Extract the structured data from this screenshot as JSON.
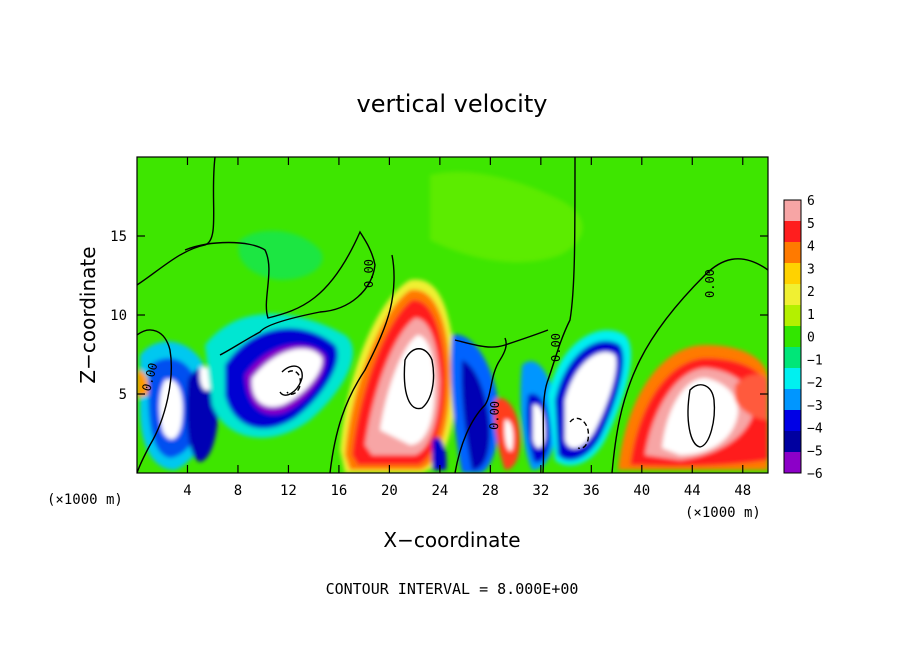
{
  "chart_data": {
    "type": "heatmap",
    "title": "vertical velocity",
    "xlabel": "X−coordinate",
    "ylabel": "Z−coordinate",
    "x_unit_left": "(×1000 m)",
    "x_unit_right": "(×1000 m)",
    "xlim": [
      0,
      50
    ],
    "ylim": [
      0,
      20
    ],
    "xticks": [
      4,
      8,
      12,
      16,
      20,
      24,
      28,
      32,
      36,
      40,
      44,
      48
    ],
    "yticks": [
      5,
      10,
      15
    ],
    "colorbar": {
      "range": [
        -6,
        6
      ],
      "ticks": [
        "6",
        "5",
        "4",
        "3",
        "2",
        "1",
        "0",
        "−1",
        "−2",
        "−3",
        "−4",
        "−5",
        "−6"
      ],
      "colors": [
        "#f7a5a5",
        "#ff1e1e",
        "#ff7a00",
        "#ffd200",
        "#f0f032",
        "#b4f000",
        "#32e600",
        "#00e678",
        "#00f0f0",
        "#0096ff",
        "#0000e6",
        "#0000a0",
        "#8c00c8"
      ]
    },
    "contour_label": "0.00",
    "footer": "CONTOUR INTERVAL = 8.000E+00",
    "features": [
      {
        "x": 2.6,
        "z": 3.6,
        "w": -6
      },
      {
        "x": 5.4,
        "z": 4.8,
        "w": -6
      },
      {
        "x": 11.8,
        "z": 6.6,
        "w": -6
      },
      {
        "x": 21.8,
        "z": 6.8,
        "w": 6
      },
      {
        "x": 19.8,
        "z": 4.2,
        "w": 5
      },
      {
        "x": 29.4,
        "z": 2.6,
        "w": 5
      },
      {
        "x": 32.0,
        "z": 3.0,
        "w": -6
      },
      {
        "x": 35.3,
        "z": 4.0,
        "w": -6
      },
      {
        "x": 44.3,
        "z": 3.8,
        "w": 6
      }
    ]
  }
}
